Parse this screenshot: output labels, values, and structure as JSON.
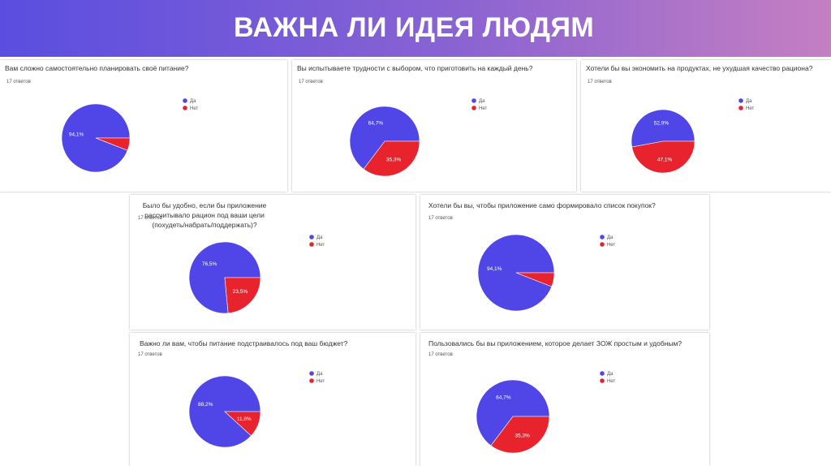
{
  "title": "ВАЖНА ЛИ ИДЕЯ ЛЮДЯМ",
  "colors": {
    "yes": "#5046e8",
    "no": "#e8232e"
  },
  "legend": {
    "yes": "Да",
    "no": "Нет"
  },
  "chart_data": [
    {
      "type": "pie",
      "question": "Вам сложно самостоятельно планировать своё питание?",
      "responses": "17 ответов",
      "labels": [
        "Да",
        "Нет"
      ],
      "values": [
        94.1,
        5.9
      ],
      "value_labels": [
        "94,1%",
        ""
      ]
    },
    {
      "type": "pie",
      "question": "Вы испытываете трудности с выбором, что приготовить на каждый день?",
      "responses": "17 ответов",
      "labels": [
        "Да",
        "Нет"
      ],
      "values": [
        64.7,
        35.3
      ],
      "value_labels": [
        "64,7%",
        "35,3%"
      ]
    },
    {
      "type": "pie",
      "question": "Хотели бы вы экономить на продуктах, не ухудшая качество рациона?",
      "responses": "17 ответов",
      "labels": [
        "Да",
        "Нет"
      ],
      "values": [
        52.9,
        47.1
      ],
      "value_labels": [
        "52,9%",
        "47,1%"
      ]
    },
    {
      "type": "pie",
      "question": "Было бы удобно, если бы приложение рассчитывало рацион под ваши цели (похудеть/набрать/поддержать)?",
      "responses": "17 ответов",
      "labels": [
        "Да",
        "Нет"
      ],
      "values": [
        76.5,
        23.5
      ],
      "value_labels": [
        "76,5%",
        "23,5%"
      ]
    },
    {
      "type": "pie",
      "question": "Хотели бы вы, чтобы приложение само формировало список покупок?",
      "responses": "17 ответов",
      "labels": [
        "Да",
        "Нет"
      ],
      "values": [
        94.1,
        5.9
      ],
      "value_labels": [
        "94,1%",
        ""
      ]
    },
    {
      "type": "pie",
      "question": "Важно ли вам, чтобы питание подстраивалось под ваш бюджет?",
      "responses": "17 ответов",
      "labels": [
        "Да",
        "Нет"
      ],
      "values": [
        88.2,
        11.8
      ],
      "value_labels": [
        "88,2%",
        "11,8%"
      ]
    },
    {
      "type": "pie",
      "question": "Пользовались бы вы приложением, которое делает ЗОЖ простым и удобным?",
      "responses": "17 ответов",
      "labels": [
        "Да",
        "Нет"
      ],
      "values": [
        64.7,
        35.3
      ],
      "value_labels": [
        "64,7%",
        "35,3%"
      ]
    }
  ]
}
